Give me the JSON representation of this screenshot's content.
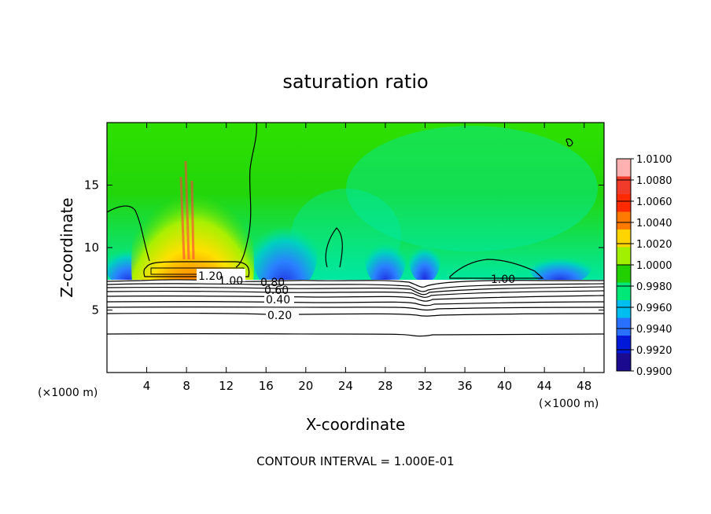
{
  "chart_data": {
    "type": "heatmap",
    "title": "saturation ratio",
    "xlabel": "X-coordinate",
    "ylabel": "Z-coordinate",
    "x_unit": "(×1000 m)",
    "xlim": [
      0,
      50
    ],
    "ylim": [
      0,
      20
    ],
    "x_ticks": [
      4,
      8,
      12,
      16,
      20,
      24,
      28,
      32,
      36,
      40,
      44,
      48
    ],
    "y_ticks": [
      5,
      10,
      15
    ],
    "colorbar": {
      "ticks": [
        "1.0100",
        "1.0080",
        "1.0060",
        "1.0040",
        "1.0020",
        "1.0000",
        "0.9980",
        "0.9960",
        "0.9940",
        "0.9920",
        "0.9900"
      ],
      "colors": [
        "#ffb0b0",
        "#f03a2a",
        "#ff2a00",
        "#ff7a00",
        "#ffd400",
        "#a0f000",
        "#22d000",
        "#00e878",
        "#00bff0",
        "#2a70ff",
        "#0018d8",
        "#1a0a90"
      ]
    },
    "contour_labels": [
      "1.20",
      "1.00",
      "0.80",
      "0.60",
      "0.40",
      "0.20",
      "1.00"
    ],
    "contour_levels": [
      0.1,
      0.2,
      0.3,
      0.4,
      0.5,
      0.6,
      0.7,
      0.8,
      0.9,
      1.0,
      1.2
    ],
    "note": "CONTOUR INTERVAL = 1.000E-01"
  }
}
